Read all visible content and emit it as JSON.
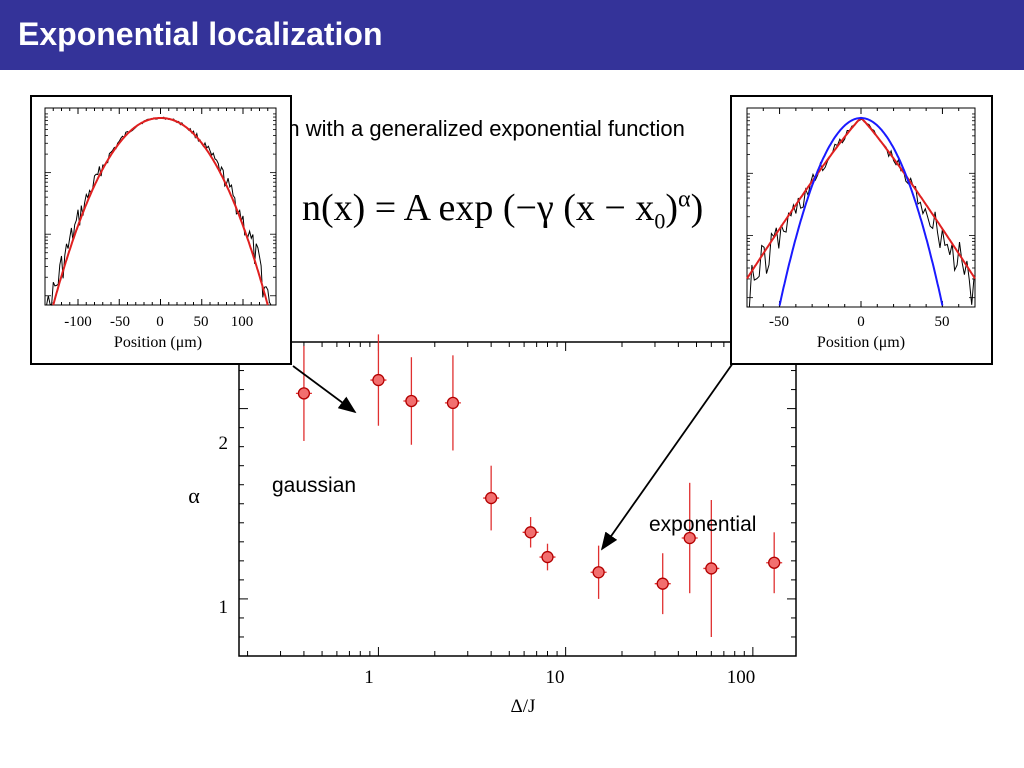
{
  "slide": {
    "title": "Exponential localization",
    "intro_text": "Fit the distribution with a generalized exponential function",
    "formula": {
      "lhs": "n(x) = A",
      "func": "exp",
      "body": "(−γ (x − x",
      "sub": "0",
      "close": ")",
      "exponent": "α",
      "end": ")"
    }
  },
  "annotations": {
    "gaussian": "gaussian",
    "exponential": "exponential"
  },
  "colors": {
    "title_bar": "#343399",
    "point_fill": "#f26f6f",
    "point_stroke": "#b30000",
    "errorbar": "#e03030",
    "fit_red": "#e02020",
    "fit_blue": "#1a1aff"
  },
  "chart_data": [
    {
      "type": "scatter",
      "xscale": "log",
      "xlabel": "Δ/J",
      "ylabel": "α",
      "xlim": [
        0.18,
        170
      ],
      "ylim": [
        0.7,
        2.35
      ],
      "xticks": [
        1,
        10,
        100
      ],
      "xtick_labels": [
        "1",
        "10",
        "100"
      ],
      "yticks": [
        1,
        2
      ],
      "ytick_labels": [
        "1",
        "2"
      ],
      "series": [
        {
          "x": [
            0.4,
            1.0,
            1.5,
            2.5,
            4.0,
            6.5,
            8.0,
            15,
            33,
            46,
            60,
            130
          ],
          "y": [
            2.08,
            2.15,
            2.04,
            2.03,
            1.53,
            1.35,
            1.22,
            1.14,
            1.08,
            1.32,
            1.16,
            1.19
          ],
          "yerr": [
            0.25,
            0.24,
            0.23,
            0.25,
            0.17,
            0.08,
            0.07,
            0.14,
            0.16,
            0.29,
            0.36,
            0.16
          ]
        }
      ]
    },
    {
      "type": "line",
      "xlabel": "Position (μm)",
      "ylabel": "",
      "yscale": "log",
      "xlim": [
        -140,
        140
      ],
      "xticks": [
        -100,
        -50,
        0,
        50,
        100
      ],
      "xtick_labels": [
        "-100",
        "-50",
        "0",
        "50",
        "100"
      ],
      "series": [
        {
          "role": "data",
          "color": "#000000"
        },
        {
          "role": "fit",
          "color": "#e02020",
          "alpha": 2.1
        }
      ]
    },
    {
      "type": "line",
      "xlabel": "Position (μm)",
      "ylabel": "",
      "yscale": "log",
      "xlim": [
        -70,
        70
      ],
      "xticks": [
        -50,
        0,
        50
      ],
      "xtick_labels": [
        "-50",
        "0",
        "50"
      ],
      "series": [
        {
          "role": "data",
          "color": "#000000"
        },
        {
          "role": "fit",
          "color": "#e02020",
          "alpha": 1.1
        },
        {
          "role": "gaussian",
          "color": "#1a1aff",
          "alpha": 2.0
        }
      ]
    }
  ]
}
